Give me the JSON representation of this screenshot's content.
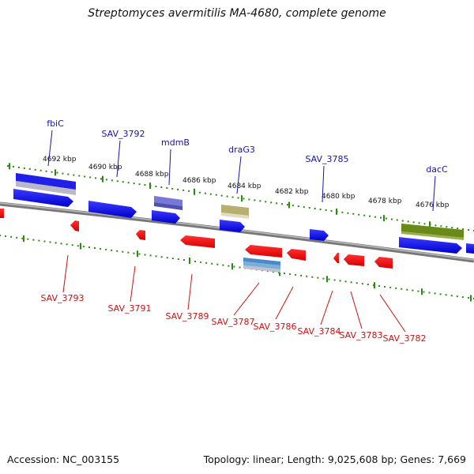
{
  "title": "Streptomyces avermitilis MA-4680, complete genome",
  "footer": {
    "accession": "Accession: NC_003155",
    "summary": "Topology: linear; Length: 9,025,608 bp; Genes: 7,669"
  },
  "colors": {
    "forward_gene": "#1010e0",
    "reverse_gene": "#ee1010",
    "backbone": "#8a8a8a",
    "ruler": "#2a8a10",
    "top_label": "#1515a8",
    "bottom_label": "#d01010"
  },
  "scale_labels": [
    "4692 kbp",
    "4690 kbp",
    "4688 kbp",
    "4686 kbp",
    "4684 kbp",
    "4682 kbp",
    "4680 kbp",
    "4678 kbp",
    "4676 kbp"
  ],
  "top_gene_labels": [
    "fbiC",
    "SAV_3792",
    "mdmB",
    "draG3",
    "SAV_3785",
    "dacC"
  ],
  "bottom_gene_labels": [
    "SAV_3793",
    "SAV_3791",
    "SAV_3789",
    "SAV_3787",
    "SAV_3786",
    "SAV_3784",
    "SAV_3783",
    "SAV_3782"
  ]
}
